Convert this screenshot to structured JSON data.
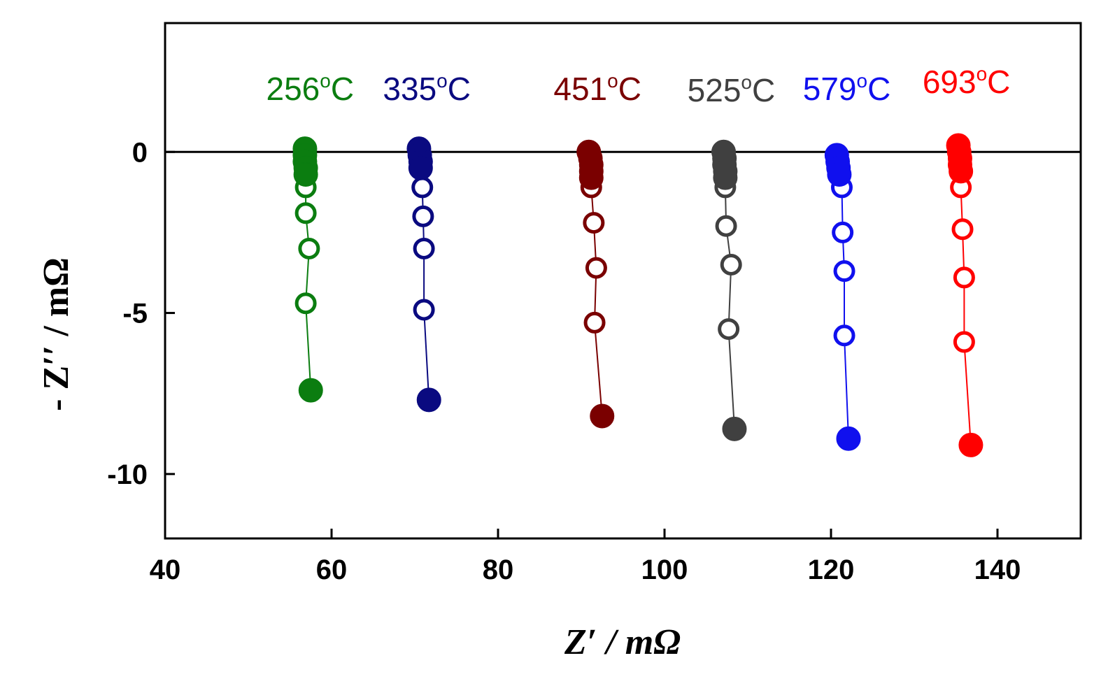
{
  "chart_data": {
    "type": "scatter",
    "title": "",
    "xlabel": "Z′ / mΩ",
    "ylabel": "- Z′′ / mΩ",
    "xlim": [
      40,
      150
    ],
    "ylim": [
      -12,
      4
    ],
    "x_ticks": [
      40,
      60,
      80,
      100,
      120,
      140
    ],
    "y_ticks": [
      0,
      -5,
      -10
    ],
    "x_tick_labels": [
      "40",
      "60",
      "80",
      "100",
      "120",
      "140"
    ],
    "y_tick_labels": [
      "0",
      "-5",
      "-10"
    ],
    "zero_line": true,
    "grid": false,
    "series": [
      {
        "name": "256°C",
        "label_value": "256",
        "label_unit": "C",
        "color": "#0b7d10",
        "filled": [
          {
            "x": 56.8,
            "y": 0.1
          },
          {
            "x": 56.8,
            "y": -0.1
          },
          {
            "x": 56.8,
            "y": -0.3
          },
          {
            "x": 56.9,
            "y": -0.5
          },
          {
            "x": 56.9,
            "y": -0.7
          },
          {
            "x": 57.5,
            "y": -7.4
          }
        ],
        "open": [
          {
            "x": 56.9,
            "y": -1.1
          },
          {
            "x": 56.9,
            "y": -1.9
          },
          {
            "x": 57.3,
            "y": -3.0
          },
          {
            "x": 56.9,
            "y": -4.7
          }
        ]
      },
      {
        "name": "335°C",
        "label_value": "335",
        "label_unit": "C",
        "color": "#0a0a80",
        "filled": [
          {
            "x": 70.5,
            "y": 0.1
          },
          {
            "x": 70.6,
            "y": -0.1
          },
          {
            "x": 70.7,
            "y": -0.3
          },
          {
            "x": 70.7,
            "y": -0.5
          },
          {
            "x": 71.7,
            "y": -7.7
          }
        ],
        "open": [
          {
            "x": 70.9,
            "y": -1.1
          },
          {
            "x": 71.0,
            "y": -2.0
          },
          {
            "x": 71.1,
            "y": -3.0
          },
          {
            "x": 71.1,
            "y": -4.9
          }
        ]
      },
      {
        "name": "451°C",
        "label_value": "451",
        "label_unit": "C",
        "color": "#7a0000",
        "filled": [
          {
            "x": 90.9,
            "y": 0.0
          },
          {
            "x": 91.1,
            "y": -0.2
          },
          {
            "x": 91.2,
            "y": -0.4
          },
          {
            "x": 91.2,
            "y": -0.6
          },
          {
            "x": 91.2,
            "y": -0.8
          },
          {
            "x": 92.5,
            "y": -8.2
          }
        ],
        "open": [
          {
            "x": 91.2,
            "y": -1.1
          },
          {
            "x": 91.5,
            "y": -2.2
          },
          {
            "x": 91.8,
            "y": -3.6
          },
          {
            "x": 91.6,
            "y": -5.3
          }
        ]
      },
      {
        "name": "525°C",
        "label_value": "525",
        "label_unit": "C",
        "color": "#404040",
        "filled": [
          {
            "x": 107.1,
            "y": 0.0
          },
          {
            "x": 107.2,
            "y": -0.2
          },
          {
            "x": 107.2,
            "y": -0.4
          },
          {
            "x": 107.3,
            "y": -0.6
          },
          {
            "x": 107.3,
            "y": -0.8
          },
          {
            "x": 108.4,
            "y": -8.6
          }
        ],
        "open": [
          {
            "x": 107.3,
            "y": -1.1
          },
          {
            "x": 107.4,
            "y": -2.3
          },
          {
            "x": 108.0,
            "y": -3.5
          },
          {
            "x": 107.7,
            "y": -5.5
          }
        ]
      },
      {
        "name": "579°C",
        "label_value": "579",
        "label_unit": "C",
        "color": "#1010ee",
        "filled": [
          {
            "x": 120.7,
            "y": -0.1
          },
          {
            "x": 120.8,
            "y": -0.3
          },
          {
            "x": 120.9,
            "y": -0.5
          },
          {
            "x": 121.0,
            "y": -0.7
          },
          {
            "x": 122.1,
            "y": -8.9
          }
        ],
        "open": [
          {
            "x": 121.3,
            "y": -1.1
          },
          {
            "x": 121.4,
            "y": -2.5
          },
          {
            "x": 121.6,
            "y": -3.7
          },
          {
            "x": 121.6,
            "y": -5.7
          }
        ]
      },
      {
        "name": "693°C",
        "label_value": "693",
        "label_unit": "C",
        "color": "#ff0000",
        "filled": [
          {
            "x": 135.3,
            "y": 0.2
          },
          {
            "x": 135.4,
            "y": 0.0
          },
          {
            "x": 135.5,
            "y": -0.2
          },
          {
            "x": 135.5,
            "y": -0.4
          },
          {
            "x": 135.6,
            "y": -0.6
          },
          {
            "x": 136.8,
            "y": -9.1
          }
        ],
        "open": [
          {
            "x": 135.6,
            "y": -1.1
          },
          {
            "x": 135.8,
            "y": -2.4
          },
          {
            "x": 136.0,
            "y": -3.9
          },
          {
            "x": 136.0,
            "y": -5.9
          }
        ]
      }
    ]
  }
}
